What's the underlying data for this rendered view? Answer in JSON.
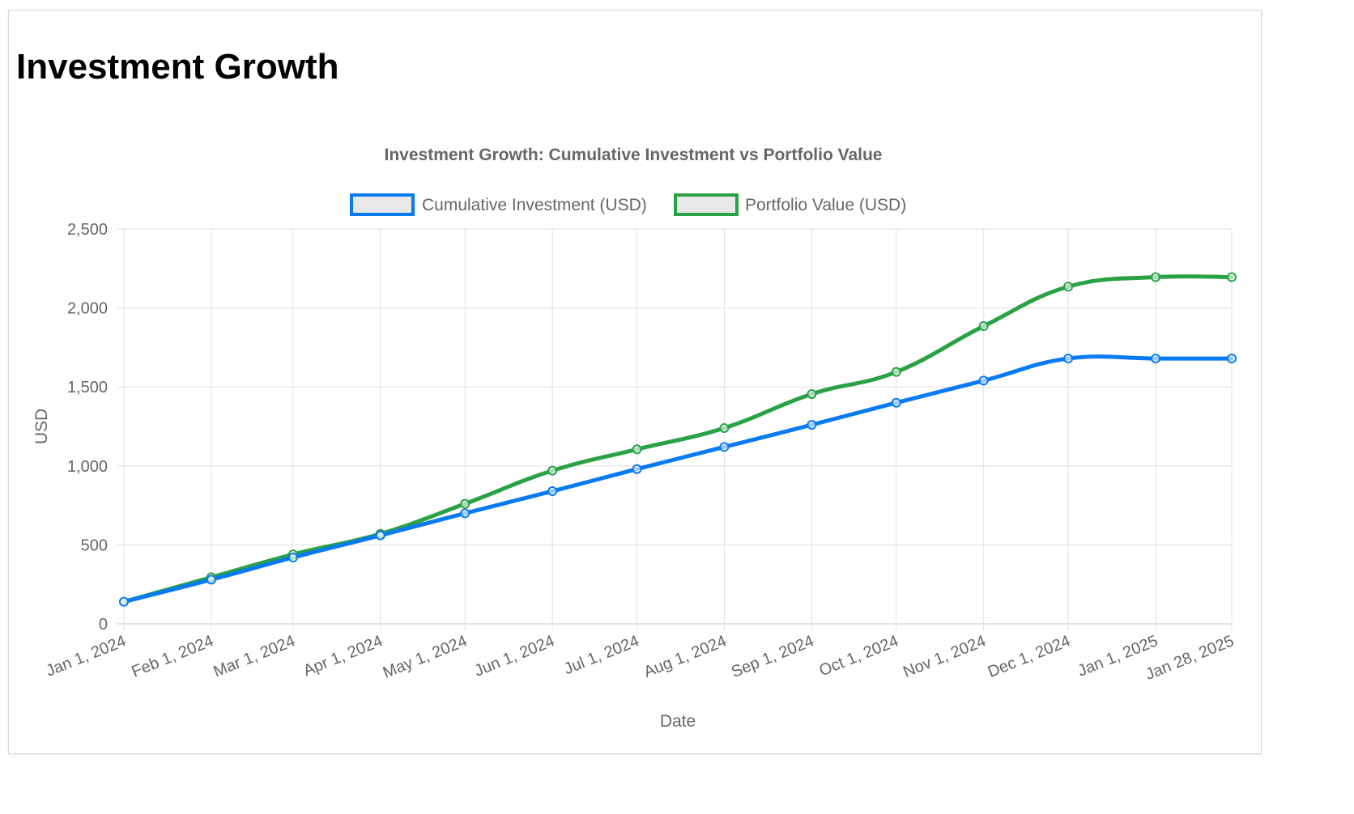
{
  "page": {
    "title": "Investment Growth"
  },
  "colors": {
    "investment": "#0a7af0",
    "portfolio": "#28a245",
    "grid": "#e1e1e1",
    "text": "#666666"
  },
  "chart_data": {
    "type": "line",
    "title": "Investment Growth: Cumulative Investment vs Portfolio Value",
    "xlabel": "Date",
    "ylabel": "USD",
    "x_scale": "time",
    "ylim": [
      0,
      2500
    ],
    "y_ticks": [
      "0",
      "500",
      "1,000",
      "1,500",
      "2,000",
      "2,500"
    ],
    "y_tick_values": [
      0,
      500,
      1000,
      1500,
      2000,
      2500
    ],
    "x": [
      "2024-01-01",
      "2024-02-01",
      "2024-03-01",
      "2024-04-01",
      "2024-05-01",
      "2024-06-01",
      "2024-07-01",
      "2024-08-01",
      "2024-09-01",
      "2024-10-01",
      "2024-11-01",
      "2024-12-01",
      "2025-01-01",
      "2025-01-28"
    ],
    "x_tick_labels": [
      "Jan 1, 2024",
      "Feb 1, 2024",
      "Mar 1, 2024",
      "Apr 1, 2024",
      "May 1, 2024",
      "Jun 1, 2024",
      "Jul 1, 2024",
      "Aug 1, 2024",
      "Sep 1, 2024",
      "Oct 1, 2024",
      "Nov 1, 2024",
      "Dec 1, 2024",
      "Jan 1, 2025",
      "Jan 28, 2025"
    ],
    "legend_position": "top",
    "grid": true,
    "series": [
      {
        "name": "Cumulative Investment (USD)",
        "color": "#0a7af0",
        "values": [
          140,
          280,
          420,
          560,
          700,
          840,
          980,
          1120,
          1260,
          1400,
          1540,
          1680,
          1680,
          1680
        ]
      },
      {
        "name": "Portfolio Value (USD)",
        "color": "#28a245",
        "values": [
          140,
          295,
          440,
          570,
          760,
          970,
          1105,
          1240,
          1455,
          1595,
          1885,
          2135,
          2195,
          2195
        ]
      }
    ]
  }
}
